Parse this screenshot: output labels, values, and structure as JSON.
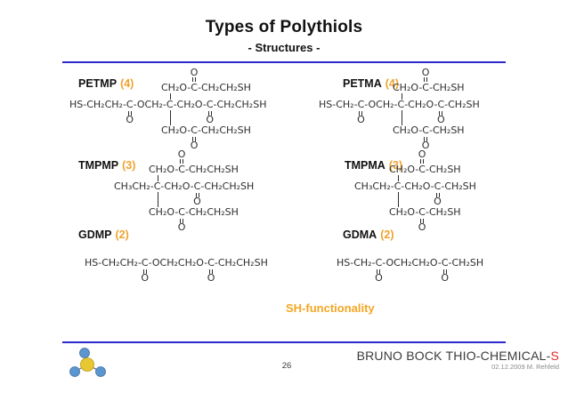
{
  "slide": {
    "title": "Types of Polythiols",
    "subtitle": "- Structures -",
    "sh_functionality": "SH-functionality",
    "page_number": "26",
    "footer_brand": "BRUNO BOCK THIO-CHEMICAL-",
    "footer_brand_suffix": "S",
    "footer_date": "02.12.2009 M. Rehfeld"
  },
  "colors": {
    "rule_blue": "#2A2ACD",
    "accent_orange": "#F0A22E",
    "sh_orange": "#F5A623",
    "brand_red": "#E02A2A",
    "logo_blue": "#5B96CE",
    "logo_yellow": "#E8C832",
    "formula_ink": "#2e2e2e"
  },
  "chem": {
    "oxygen": "O"
  },
  "structures": [
    {
      "name": "PETMP",
      "functionality": "(4)",
      "rows": [
        {
          "role": "top-branch",
          "segs": [
            {
              "t": "CH₂O-"
            },
            {
              "t": "C",
              "m": "oa"
            },
            {
              "t": "-CH₂CH₂SH"
            }
          ]
        },
        {
          "role": "main",
          "segs": [
            {
              "t": "HS-CH₂CH₂-"
            },
            {
              "t": "C",
              "m": "ob"
            },
            {
              "t": "-OCH₂-"
            },
            {
              "t": "C",
              "m": "cc"
            },
            {
              "t": "-CH₂O-"
            },
            {
              "t": "C",
              "m": "ob"
            },
            {
              "t": "-CH₂CH₂SH"
            }
          ]
        },
        {
          "role": "bottom-branch",
          "segs": [
            {
              "t": "CH₂O-"
            },
            {
              "t": "C",
              "m": "ob"
            },
            {
              "t": "-CH₂CH₂SH"
            }
          ]
        }
      ]
    },
    {
      "name": "PETMA",
      "functionality": "(4)",
      "rows": [
        {
          "role": "top-branch",
          "segs": [
            {
              "t": "CH₂O-"
            },
            {
              "t": "C",
              "m": "oa"
            },
            {
              "t": "-CH₂SH"
            }
          ]
        },
        {
          "role": "main",
          "segs": [
            {
              "t": "HS-CH₂-"
            },
            {
              "t": "C",
              "m": "ob"
            },
            {
              "t": "-OCH₂-"
            },
            {
              "t": "C",
              "m": "cc"
            },
            {
              "t": "-CH₂O-"
            },
            {
              "t": "C",
              "m": "ob"
            },
            {
              "t": "-CH₂SH"
            }
          ]
        },
        {
          "role": "bottom-branch",
          "segs": [
            {
              "t": "CH₂O-"
            },
            {
              "t": "C",
              "m": "ob"
            },
            {
              "t": "-CH₂SH"
            }
          ]
        }
      ]
    },
    {
      "name": "TMPMP",
      "functionality": "(3)",
      "rows": [
        {
          "role": "top-branch",
          "segs": [
            {
              "t": "CH₂O-"
            },
            {
              "t": "C",
              "m": "oa"
            },
            {
              "t": "-CH₂CH₂SH"
            }
          ]
        },
        {
          "role": "main",
          "segs": [
            {
              "t": "CH₃CH₂-"
            },
            {
              "t": "C",
              "m": "cc"
            },
            {
              "t": "-CH₂O-"
            },
            {
              "t": "C",
              "m": "ob"
            },
            {
              "t": "-CH₂CH₂SH"
            }
          ]
        },
        {
          "role": "bottom-branch",
          "segs": [
            {
              "t": "CH₂O-"
            },
            {
              "t": "C",
              "m": "ob"
            },
            {
              "t": "-CH₂CH₂SH"
            }
          ]
        }
      ]
    },
    {
      "name": "TMPMA",
      "functionality": "(3)",
      "rows": [
        {
          "role": "top-branch",
          "segs": [
            {
              "t": "CH₂O-"
            },
            {
              "t": "C",
              "m": "oa"
            },
            {
              "t": "-CH₂SH"
            }
          ]
        },
        {
          "role": "main",
          "segs": [
            {
              "t": "CH₃CH₂-"
            },
            {
              "t": "C",
              "m": "cc"
            },
            {
              "t": "-CH₂O-"
            },
            {
              "t": "C",
              "m": "ob"
            },
            {
              "t": "-CH₂SH"
            }
          ]
        },
        {
          "role": "bottom-branch",
          "segs": [
            {
              "t": "CH₂O-"
            },
            {
              "t": "C",
              "m": "ob"
            },
            {
              "t": "-CH₂SH"
            }
          ]
        }
      ]
    },
    {
      "name": "GDMP",
      "functionality": "(2)",
      "rows": [
        {
          "role": "single",
          "segs": [
            {
              "t": "HS-CH₂CH₂-"
            },
            {
              "t": "C",
              "m": "ob"
            },
            {
              "t": "-OCH₂CH₂O-"
            },
            {
              "t": "C",
              "m": "ob"
            },
            {
              "t": "-CH₂CH₂SH"
            }
          ]
        }
      ]
    },
    {
      "name": "GDMA",
      "functionality": "(2)",
      "rows": [
        {
          "role": "single",
          "segs": [
            {
              "t": "HS-CH₂-"
            },
            {
              "t": "C",
              "m": "ob"
            },
            {
              "t": "-OCH₂CH₂O-"
            },
            {
              "t": "C",
              "m": "ob"
            },
            {
              "t": "-CH₂SH"
            }
          ]
        }
      ]
    }
  ]
}
